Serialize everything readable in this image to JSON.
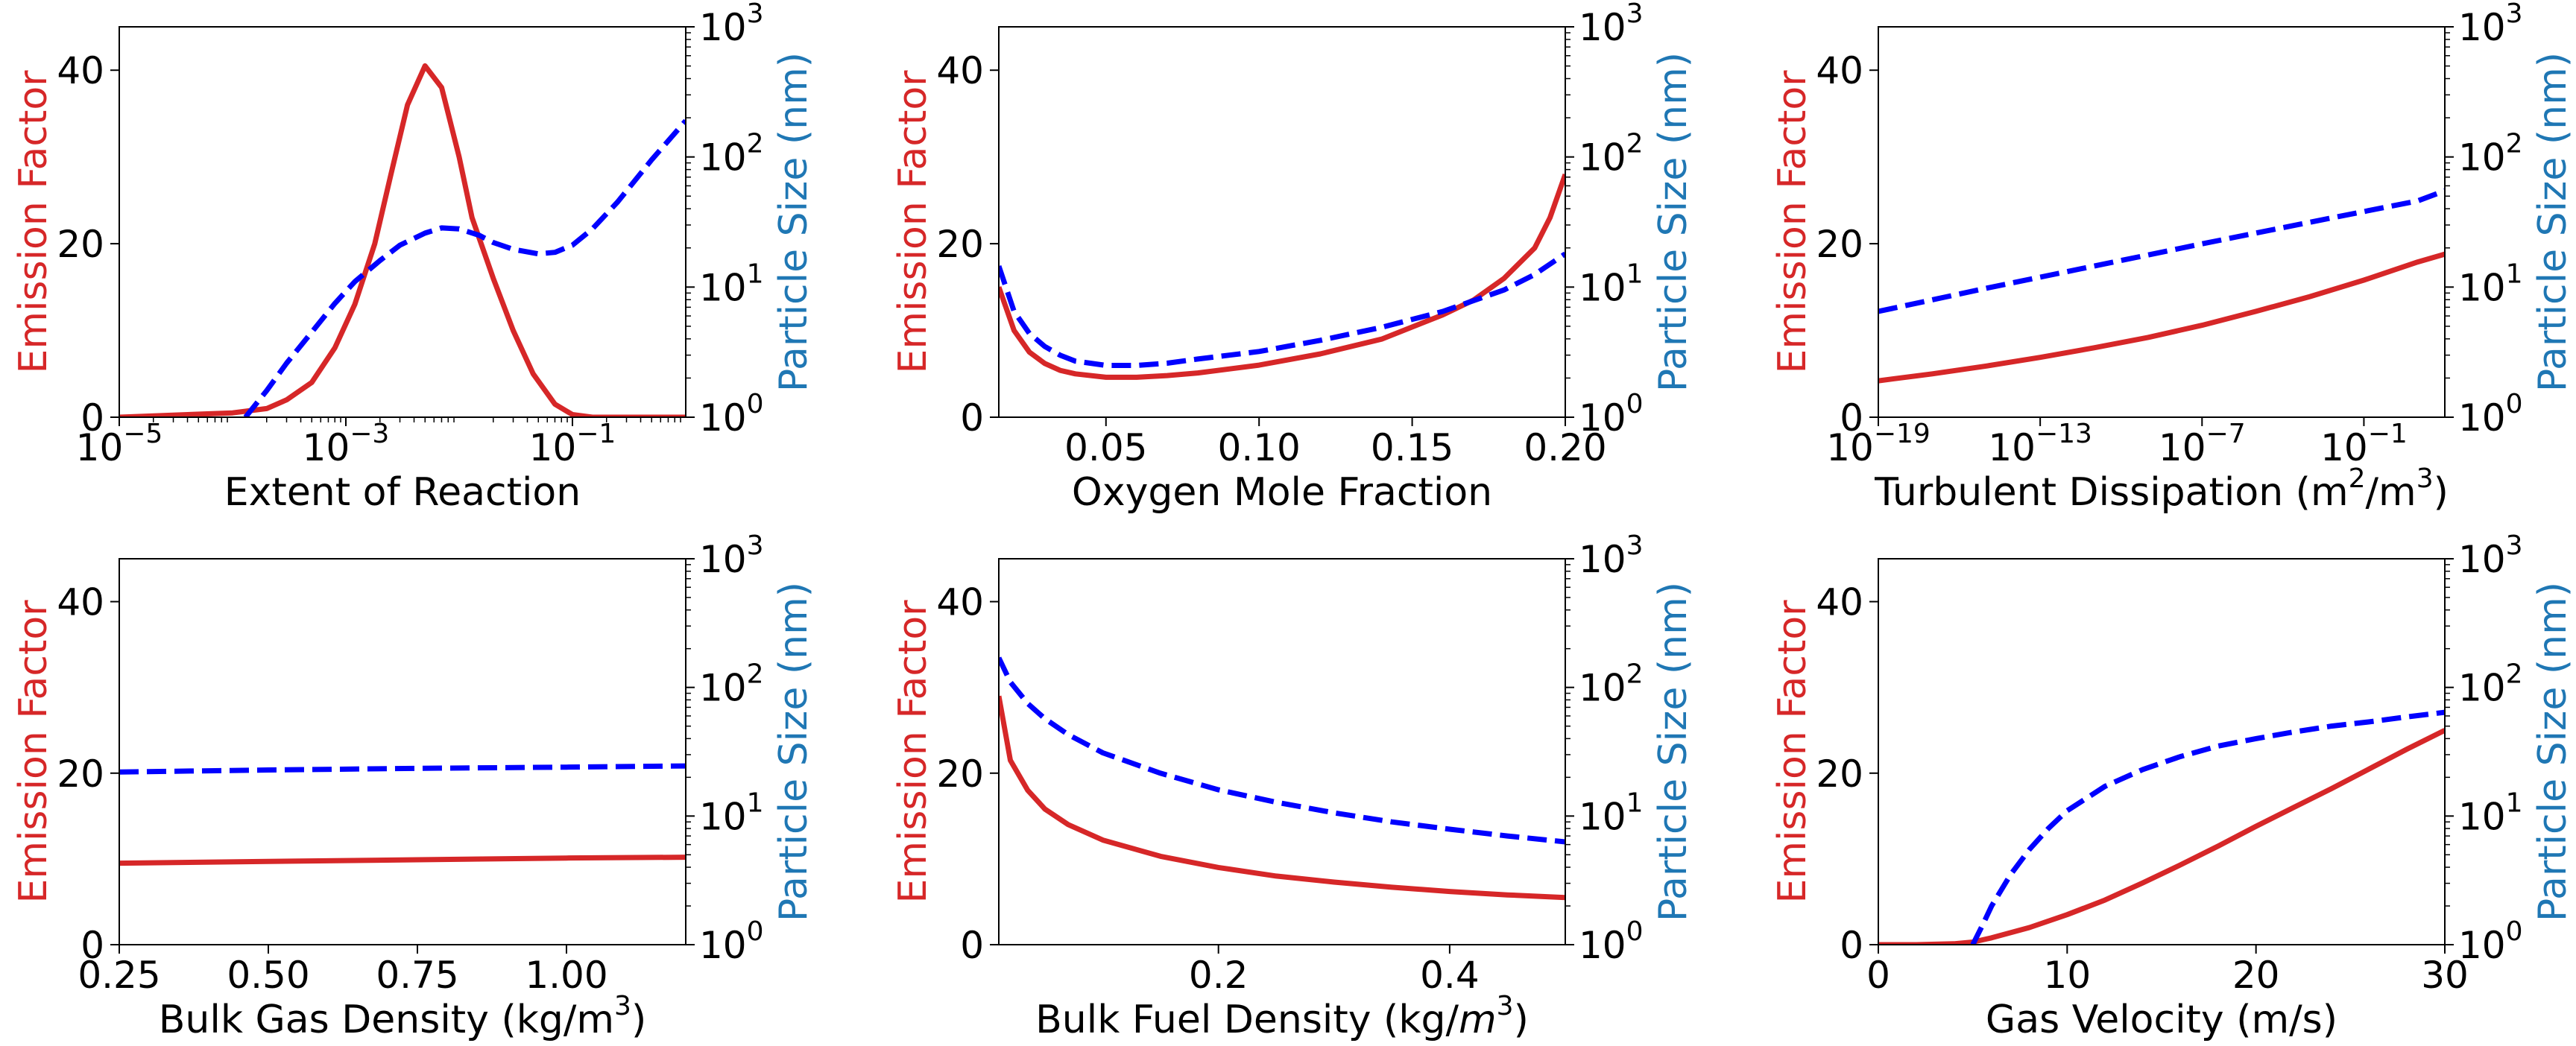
{
  "colors": {
    "emission": "#d62728",
    "size_line": "#0000ff",
    "size_label": "#1f77b4",
    "axis": "#000000"
  },
  "left_axis_label": "Emission Factor",
  "right_axis_label": "Particle Size (nm)",
  "right_ticks": [
    {
      "base": "10",
      "exp": "0",
      "value": 1
    },
    {
      "base": "10",
      "exp": "1",
      "value": 10
    },
    {
      "base": "10",
      "exp": "2",
      "value": 100
    },
    {
      "base": "10",
      "exp": "3",
      "value": 1000
    }
  ],
  "chart_data": [
    {
      "type": "line",
      "title": "",
      "xlabel_parts": [
        "Extent of Reaction"
      ],
      "xscale": "log",
      "xlim": [
        1e-05,
        1
      ],
      "xticks": [
        {
          "base": "10",
          "exp": "−5",
          "value": 1e-05
        },
        {
          "base": "10",
          "exp": "−3",
          "value": 0.001
        },
        {
          "base": "10",
          "exp": "−1",
          "value": 0.1
        }
      ],
      "ylim": [
        0,
        45
      ],
      "yticks": [
        {
          "label": "0",
          "value": 0
        },
        {
          "label": "20",
          "value": 20
        },
        {
          "label": "40",
          "value": 40
        }
      ],
      "y2lim": [
        1,
        1000
      ],
      "series": [
        {
          "name": "Emission Factor",
          "axis": "left",
          "style": "solid",
          "x": [
            1e-05,
            0.0001,
            0.0002,
            0.0003,
            0.0005,
            0.0008,
            0.0012,
            0.0018,
            0.0025,
            0.0035,
            0.005,
            0.007,
            0.008,
            0.01,
            0.013,
            0.02,
            0.03,
            0.045,
            0.07,
            0.1,
            0.15,
            0.3,
            1
          ],
          "y": [
            0,
            0.5,
            1,
            2,
            4,
            8,
            13,
            20,
            28,
            36,
            40.5,
            38,
            35,
            30,
            23,
            16,
            10,
            5,
            1.5,
            0.3,
            0,
            0,
            0
          ]
        },
        {
          "name": "Particle Size (nm)",
          "axis": "right",
          "style": "dashed",
          "x": [
            0.00013,
            0.0002,
            0.0003,
            0.0005,
            0.0008,
            0.0012,
            0.002,
            0.003,
            0.005,
            0.007,
            0.01,
            0.015,
            0.02,
            0.03,
            0.05,
            0.07,
            0.1,
            0.15,
            0.25,
            0.5,
            1
          ],
          "y": [
            1,
            1.6,
            2.6,
            4.5,
            7.5,
            11,
            16,
            21,
            26,
            28.5,
            28,
            25,
            22,
            19.5,
            18,
            18.5,
            21,
            28,
            45,
            95,
            190
          ]
        }
      ]
    },
    {
      "type": "line",
      "title": "",
      "xlabel_parts": [
        "Oxygen Mole Fraction"
      ],
      "xscale": "linear",
      "xlim": [
        0.015,
        0.2
      ],
      "xticks": [
        {
          "label": "0.05",
          "value": 0.05
        },
        {
          "label": "0.10",
          "value": 0.1
        },
        {
          "label": "0.15",
          "value": 0.15
        },
        {
          "label": "0.20",
          "value": 0.2
        }
      ],
      "ylim": [
        0,
        45
      ],
      "yticks": [
        {
          "label": "0",
          "value": 0
        },
        {
          "label": "20",
          "value": 20
        },
        {
          "label": "40",
          "value": 40
        }
      ],
      "y2lim": [
        1,
        1000
      ],
      "series": [
        {
          "name": "Emission Factor",
          "axis": "left",
          "style": "solid",
          "x": [
            0.015,
            0.02,
            0.025,
            0.03,
            0.035,
            0.04,
            0.05,
            0.06,
            0.07,
            0.08,
            0.1,
            0.12,
            0.14,
            0.16,
            0.17,
            0.18,
            0.19,
            0.195,
            0.2
          ],
          "y": [
            15,
            10,
            7.5,
            6.2,
            5.4,
            5,
            4.6,
            4.6,
            4.8,
            5.1,
            6,
            7.3,
            9,
            11.8,
            13.5,
            16,
            19.5,
            23,
            28
          ]
        },
        {
          "name": "Particle Size (nm)",
          "axis": "right",
          "style": "dashed",
          "x": [
            0.015,
            0.02,
            0.025,
            0.03,
            0.035,
            0.04,
            0.05,
            0.06,
            0.07,
            0.08,
            0.1,
            0.12,
            0.14,
            0.16,
            0.18,
            0.19,
            0.2
          ],
          "y": [
            14.5,
            6.5,
            4.4,
            3.5,
            3,
            2.7,
            2.5,
            2.5,
            2.6,
            2.8,
            3.2,
            3.9,
            4.9,
            6.5,
            9.5,
            12.5,
            18
          ]
        }
      ]
    },
    {
      "type": "line",
      "title": "",
      "xlabel_parts": [
        "Turbulent Dissipation (m",
        {
          "sup": "2"
        },
        "/m",
        {
          "sup": "3"
        },
        ")"
      ],
      "xscale": "log",
      "xlim": [
        1e-19,
        100
      ],
      "xticks": [
        {
          "base": "10",
          "exp": "−19",
          "value": 1e-19
        },
        {
          "base": "10",
          "exp": "−13",
          "value": 1e-13
        },
        {
          "base": "10",
          "exp": "−7",
          "value": 1e-07
        },
        {
          "base": "10",
          "exp": "−1",
          "value": 0.1
        }
      ],
      "ylim": [
        0,
        45
      ],
      "yticks": [
        {
          "label": "0",
          "value": 0
        },
        {
          "label": "20",
          "value": 20
        },
        {
          "label": "40",
          "value": 40
        }
      ],
      "y2lim": [
        1,
        1000
      ],
      "series": [
        {
          "name": "Emission Factor",
          "axis": "left",
          "style": "solid",
          "x": [
            1e-19,
            1e-17,
            1e-15,
            1e-13,
            1e-11,
            1e-09,
            1e-07,
            1e-05,
            0.001,
            0.1,
            10,
            100
          ],
          "y": [
            4.2,
            5,
            5.9,
            6.9,
            8,
            9.2,
            10.6,
            12.2,
            13.9,
            15.8,
            17.9,
            18.8
          ]
        },
        {
          "name": "Particle Size (nm)",
          "axis": "right",
          "style": "dashed",
          "x": [
            1e-19,
            1e-15,
            1e-11,
            1e-07,
            0.001,
            10,
            100
          ],
          "y": [
            6.5,
            9.8,
            14.5,
            21.5,
            31.5,
            46,
            55
          ]
        }
      ]
    },
    {
      "type": "line",
      "title": "",
      "xlabel_parts": [
        "Bulk Gas Density (kg/m",
        {
          "sup": "3"
        },
        ")"
      ],
      "xscale": "linear",
      "xlim": [
        0.25,
        1.2
      ],
      "xticks": [
        {
          "label": "0.25",
          "value": 0.25
        },
        {
          "label": "0.50",
          "value": 0.5
        },
        {
          "label": "0.75",
          "value": 0.75
        },
        {
          "label": "1.00",
          "value": 1
        }
      ],
      "ylim": [
        0,
        45
      ],
      "yticks": [
        {
          "label": "0",
          "value": 0
        },
        {
          "label": "20",
          "value": 20
        },
        {
          "label": "40",
          "value": 40
        }
      ],
      "y2lim": [
        1,
        1000
      ],
      "series": [
        {
          "name": "Emission Factor",
          "axis": "left",
          "style": "solid",
          "x": [
            0.25,
            0.5,
            0.75,
            1.0,
            1.2
          ],
          "y": [
            9.5,
            9.7,
            9.9,
            10.1,
            10.2
          ]
        },
        {
          "name": "Particle Size (nm)",
          "axis": "right",
          "style": "dashed",
          "x": [
            0.25,
            0.5,
            0.75,
            1.0,
            1.2
          ],
          "y": [
            22,
            22.8,
            23.5,
            24,
            24.5
          ]
        }
      ]
    },
    {
      "type": "line",
      "title": "",
      "xlabel_parts": [
        "Bulk Fuel Density (kg/",
        {
          "italic": "m"
        },
        {
          "sup": "3"
        },
        ")"
      ],
      "xscale": "linear",
      "xlim": [
        0.01,
        0.5
      ],
      "xticks": [
        {
          "label": "0.2",
          "value": 0.2
        },
        {
          "label": "0.4",
          "value": 0.4
        }
      ],
      "ylim": [
        0,
        45
      ],
      "yticks": [
        {
          "label": "0",
          "value": 0
        },
        {
          "label": "20",
          "value": 20
        },
        {
          "label": "40",
          "value": 40
        }
      ],
      "y2lim": [
        1,
        1000
      ],
      "series": [
        {
          "name": "Emission Factor",
          "axis": "left",
          "style": "solid",
          "x": [
            0.01,
            0.02,
            0.035,
            0.05,
            0.07,
            0.1,
            0.15,
            0.2,
            0.25,
            0.3,
            0.35,
            0.4,
            0.45,
            0.5
          ],
          "y": [
            29,
            21.5,
            18,
            15.8,
            14,
            12.2,
            10.3,
            9,
            8,
            7.3,
            6.7,
            6.2,
            5.8,
            5.5
          ]
        },
        {
          "name": "Particle Size (nm)",
          "axis": "right",
          "style": "dashed",
          "x": [
            0.01,
            0.02,
            0.035,
            0.05,
            0.07,
            0.1,
            0.15,
            0.2,
            0.25,
            0.3,
            0.35,
            0.4,
            0.45,
            0.5
          ],
          "y": [
            170,
            110,
            75,
            57,
            43,
            31,
            21.5,
            16,
            12.8,
            10.6,
            9,
            7.9,
            7,
            6.3
          ]
        }
      ]
    },
    {
      "type": "line",
      "title": "",
      "xlabel_parts": [
        "Gas Velocity (m/s)"
      ],
      "xscale": "linear",
      "xlim": [
        0,
        30
      ],
      "xticks": [
        {
          "label": "0",
          "value": 0
        },
        {
          "label": "10",
          "value": 10
        },
        {
          "label": "20",
          "value": 20
        },
        {
          "label": "30",
          "value": 30
        }
      ],
      "ylim": [
        0,
        45
      ],
      "yticks": [
        {
          "label": "0",
          "value": 0
        },
        {
          "label": "20",
          "value": 20
        },
        {
          "label": "40",
          "value": 40
        }
      ],
      "y2lim": [
        1,
        1000
      ],
      "series": [
        {
          "name": "Emission Factor",
          "axis": "left",
          "style": "solid",
          "x": [
            0,
            2,
            4,
            5,
            6,
            8,
            10,
            12,
            14,
            16,
            18,
            20,
            22,
            24,
            26,
            28,
            30
          ],
          "y": [
            0,
            0,
            0.1,
            0.3,
            0.8,
            2,
            3.5,
            5.2,
            7.2,
            9.3,
            11.5,
            13.8,
            16,
            18.2,
            20.5,
            22.8,
            25
          ]
        },
        {
          "name": "Particle Size (nm)",
          "axis": "right",
          "style": "dashed",
          "x": [
            5,
            5.5,
            6,
            7,
            8,
            9,
            10,
            12,
            14,
            16,
            18,
            20,
            22,
            24,
            26,
            28,
            30
          ],
          "y": [
            1,
            1.4,
            2,
            3.5,
            5.5,
            8,
            11,
            17,
            23,
            29,
            35,
            40,
            45,
            50,
            54,
            59,
            64
          ]
        }
      ]
    }
  ]
}
